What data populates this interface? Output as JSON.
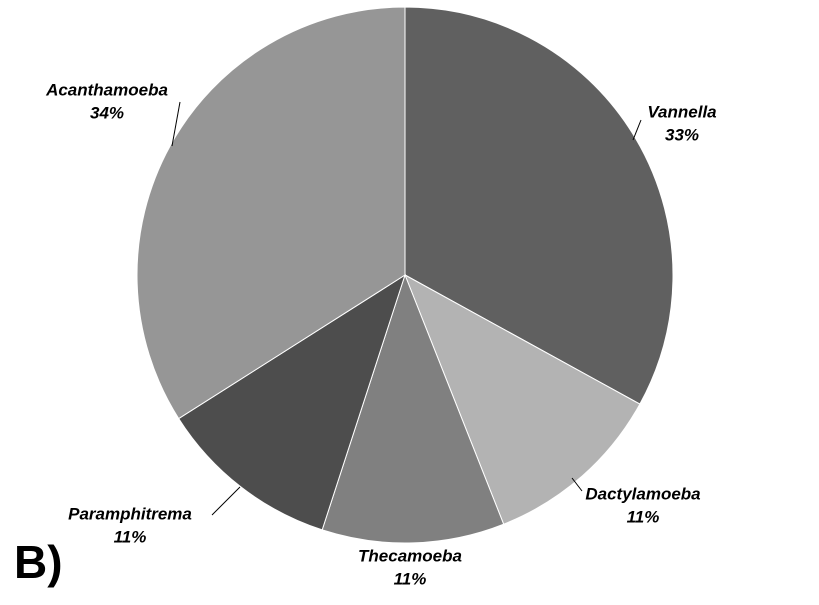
{
  "chart_data": {
    "type": "pie",
    "panel_label": "B)",
    "categories": [
      "Vannella",
      "Dactylamoeba",
      "Thecamoeba",
      "Paramphitrema",
      "Acanthamoeba"
    ],
    "values": [
      33,
      11,
      11,
      11,
      34
    ],
    "value_labels": [
      "33%",
      "11%",
      "11%",
      "11%",
      "34%"
    ],
    "colors": [
      "#606060",
      "#b3b3b3",
      "#808080",
      "#4d4d4d",
      "#969696"
    ]
  }
}
